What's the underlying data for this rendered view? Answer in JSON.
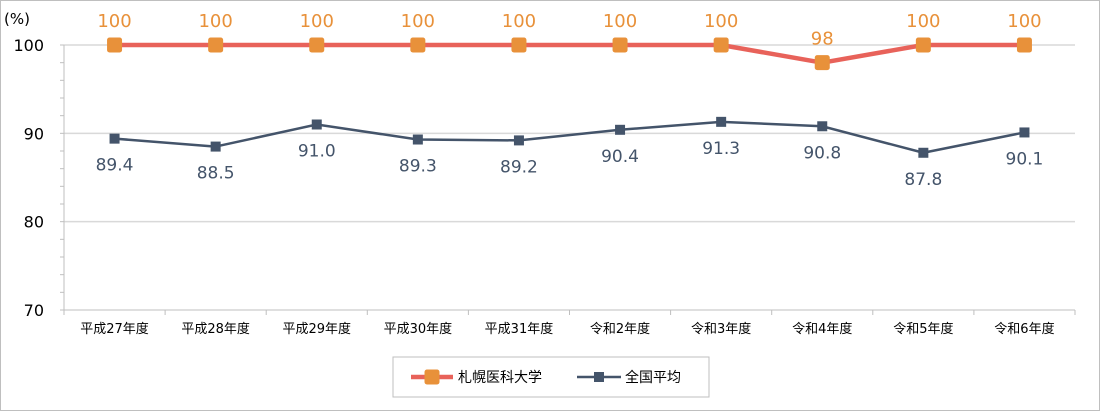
{
  "chart_data": {
    "type": "line",
    "unit_label": "(%)",
    "categories": [
      "平成27年度",
      "平成28年度",
      "平成29年度",
      "平成30年度",
      "平成31年度",
      "令和2年度",
      "令和3年度",
      "令和4年度",
      "令和5年度",
      "令和6年度"
    ],
    "y_ticks": [
      "100",
      "90",
      "80",
      "70"
    ],
    "ylim": [
      70,
      100
    ],
    "grid": true,
    "legend_position": "bottom-center",
    "series": [
      {
        "name": "札幌医科大学",
        "values": [
          100,
          100,
          100,
          100,
          100,
          100,
          100,
          98,
          100,
          100
        ],
        "labels": [
          "100",
          "100",
          "100",
          "100",
          "100",
          "100",
          "100",
          "98",
          "100",
          "100"
        ],
        "line_color": "#e8625a",
        "marker_color": "#e8913a",
        "marker": "square"
      },
      {
        "name": "全国平均",
        "values": [
          89.4,
          88.5,
          91.0,
          89.3,
          89.2,
          90.4,
          91.3,
          90.8,
          87.8,
          90.1
        ],
        "labels": [
          "89.4",
          "88.5",
          "91.0",
          "89.3",
          "89.2",
          "90.4",
          "91.3",
          "90.8",
          "87.8",
          "90.1"
        ],
        "line_color": "#44546a",
        "marker_color": "#44546a",
        "marker": "square"
      }
    ]
  }
}
